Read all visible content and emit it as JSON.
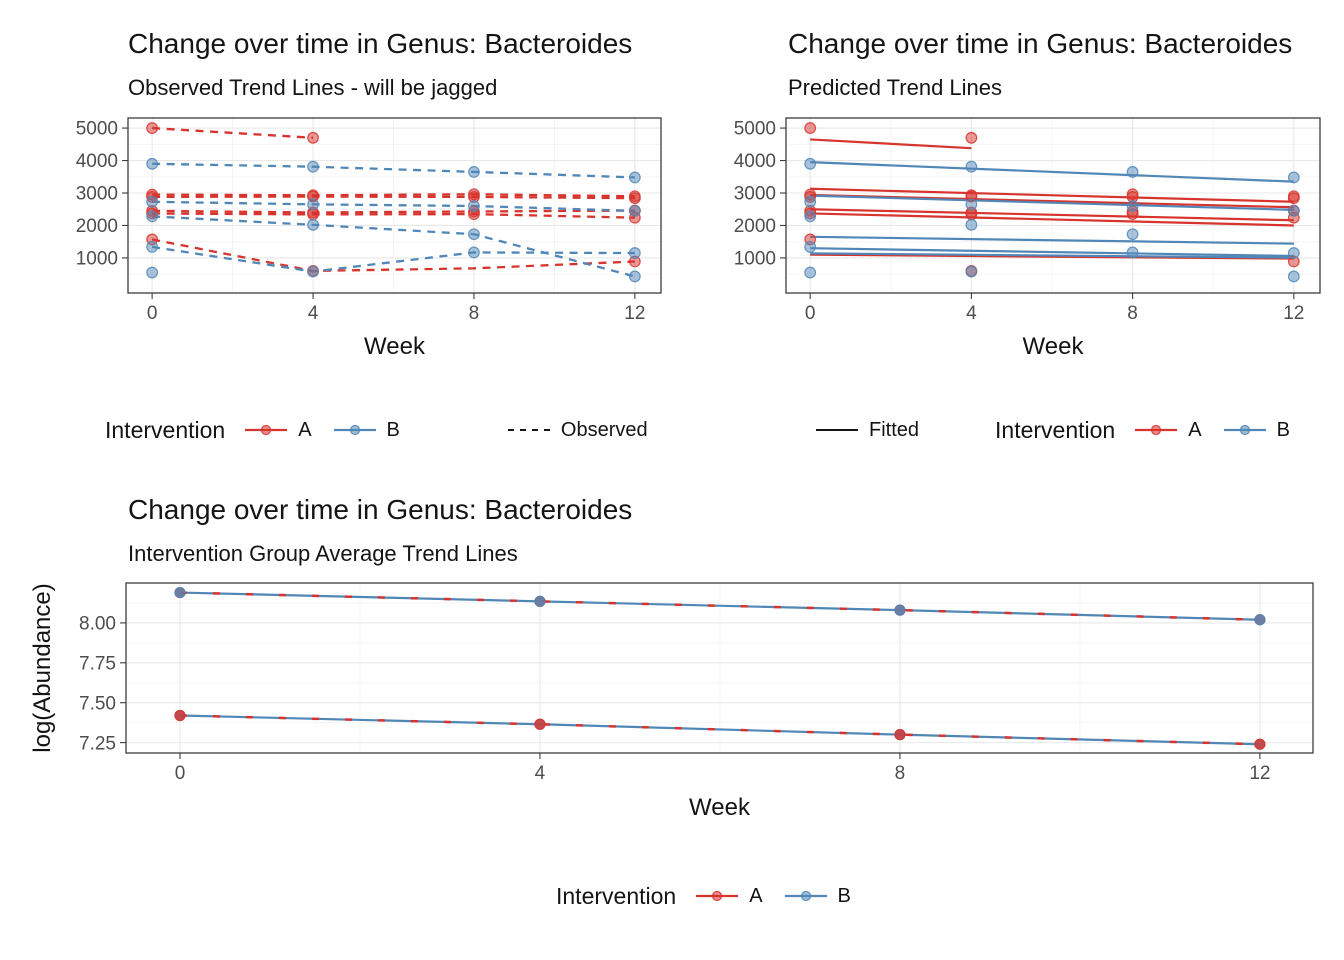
{
  "figure": {
    "background": "#FFFFFF"
  },
  "colors": {
    "red": "#D8342E",
    "blue": "#5187B7",
    "axis_text": "#4D4D4D",
    "title_text": "#141414",
    "grid_major": "#E8E8E8",
    "grid_minor": "#F3F3F3",
    "panel_border": "#3C3C3C",
    "legend_line": "#141414"
  },
  "chart_data": [
    {
      "id": "observed",
      "type": "line",
      "title": "Change over time in Genus: Bacteroides",
      "subtitle": "Observed Trend Lines - will be jagged",
      "xlabel": "Week",
      "ylabel": "",
      "x_ticks": [
        0,
        4,
        8,
        12
      ],
      "x_tick_labels": [
        "0",
        "4",
        "8",
        "12"
      ],
      "x_minor": [
        2,
        6,
        10
      ],
      "y_ticks": [
        1000,
        2000,
        3000,
        4000,
        5000
      ],
      "y_tick_labels": [
        "1000",
        "2000",
        "3000",
        "4000",
        "5000"
      ],
      "y_minor": [
        500,
        1500,
        2500,
        3500,
        4500
      ],
      "xlim": [
        -0.6,
        12.65
      ],
      "ylim": [
        -80,
        5310
      ],
      "legend": {
        "title": "Intervention",
        "entries": [
          {
            "label": "A",
            "color": "red"
          },
          {
            "label": "B",
            "color": "blue"
          }
        ],
        "extra": {
          "label": "Observed",
          "style": "dashed"
        }
      },
      "series": [
        {
          "name": "A-1",
          "group": "A",
          "color": "red",
          "line": "dashed",
          "x": [
            0,
            4
          ],
          "y": [
            5000,
            4700
          ],
          "markers": true
        },
        {
          "name": "A-2",
          "group": "A",
          "color": "red",
          "line": "dashed",
          "x": [
            0,
            4,
            8,
            12
          ],
          "y": [
            2950,
            2930,
            2960,
            2900
          ],
          "markers": true
        },
        {
          "name": "A-3",
          "group": "A",
          "color": "red",
          "line": "dashed",
          "x": [
            0,
            4,
            8,
            12
          ],
          "y": [
            2880,
            2890,
            2880,
            2840
          ],
          "markers": true
        },
        {
          "name": "A-4",
          "group": "A",
          "color": "red",
          "line": "dashed",
          "x": [
            0,
            4,
            8,
            12
          ],
          "y": [
            2450,
            2400,
            2430,
            2460
          ],
          "markers": true
        },
        {
          "name": "A-5",
          "group": "A",
          "color": "red",
          "line": "dashed",
          "x": [
            0,
            4,
            8,
            12
          ],
          "y": [
            2370,
            2340,
            2350,
            2240
          ],
          "markers": true
        },
        {
          "name": "A-6",
          "group": "A",
          "color": "red",
          "line": "dashed",
          "x": [
            0,
            4,
            8,
            12
          ],
          "y": [
            1570,
            600,
            680,
            890
          ],
          "markers": [
            0,
            4,
            12
          ]
        },
        {
          "name": "B-1",
          "group": "B",
          "color": "blue",
          "line": "dashed",
          "x": [
            0,
            4,
            8,
            12
          ],
          "y": [
            3900,
            3810,
            3650,
            3480
          ],
          "markers": true
        },
        {
          "name": "B-2",
          "group": "B",
          "color": "blue",
          "line": "dashed",
          "x": [
            0,
            4,
            8,
            12
          ],
          "y": [
            2730,
            2650,
            2600,
            2450
          ],
          "markers": true
        },
        {
          "name": "B-3",
          "group": "B",
          "color": "blue",
          "line": "dashed",
          "x": [
            0,
            4,
            8,
            12
          ],
          "y": [
            2280,
            2020,
            1730,
            430
          ],
          "markers": true
        },
        {
          "name": "B-4",
          "group": "B",
          "color": "blue",
          "line": "dashed",
          "x": [
            0,
            4,
            8,
            12
          ],
          "y": [
            1340,
            580,
            1170,
            1150
          ],
          "markers": true
        },
        {
          "name": "B-5",
          "group": "B",
          "color": "blue",
          "line": "none",
          "x": [
            0
          ],
          "y": [
            550
          ],
          "markers": true
        }
      ]
    },
    {
      "id": "fitted",
      "type": "line",
      "title": "Change over time in Genus: Bacteroides",
      "subtitle": "Predicted Trend Lines",
      "xlabel": "Week",
      "ylabel": "",
      "x_ticks": [
        0,
        4,
        8,
        12
      ],
      "x_tick_labels": [
        "0",
        "4",
        "8",
        "12"
      ],
      "x_minor": [
        2,
        6,
        10
      ],
      "y_ticks": [
        1000,
        2000,
        3000,
        4000,
        5000
      ],
      "y_tick_labels": [
        "1000",
        "2000",
        "3000",
        "4000",
        "5000"
      ],
      "y_minor": [
        500,
        1500,
        2500,
        3500,
        4500
      ],
      "xlim": [
        -0.6,
        12.65
      ],
      "ylim": [
        -80,
        5310
      ],
      "legend": {
        "title": "Intervention",
        "entries": [
          {
            "label": "A",
            "color": "red"
          },
          {
            "label": "B",
            "color": "blue"
          }
        ],
        "extra": {
          "label": "Fitted",
          "style": "solid"
        }
      },
      "series": [
        {
          "name": "fit-A-1",
          "group": "A",
          "color": "red",
          "line": "solid",
          "x": [
            0,
            4
          ],
          "y": [
            4650,
            4380
          ],
          "markers": false
        },
        {
          "name": "fit-A-2",
          "group": "A",
          "color": "red",
          "line": "solid",
          "x": [
            0,
            12
          ],
          "y": [
            3130,
            2730
          ],
          "markers": false
        },
        {
          "name": "fit-A-3",
          "group": "A",
          "color": "red",
          "line": "solid",
          "x": [
            0,
            12
          ],
          "y": [
            2940,
            2560
          ],
          "markers": false
        },
        {
          "name": "fit-A-4",
          "group": "A",
          "color": "red",
          "line": "solid",
          "x": [
            0,
            12
          ],
          "y": [
            2500,
            2160
          ],
          "markers": false
        },
        {
          "name": "fit-A-5",
          "group": "A",
          "color": "red",
          "line": "solid",
          "x": [
            0,
            12
          ],
          "y": [
            2370,
            2000
          ],
          "markers": false
        },
        {
          "name": "fit-A-6",
          "group": "A",
          "color": "red",
          "line": "solid",
          "x": [
            0,
            12
          ],
          "y": [
            1100,
            980
          ],
          "markers": false
        },
        {
          "name": "fit-B-1",
          "group": "B",
          "color": "blue",
          "line": "solid",
          "x": [
            0,
            12
          ],
          "y": [
            3950,
            3350
          ],
          "markers": false
        },
        {
          "name": "fit-B-2",
          "group": "B",
          "color": "blue",
          "line": "solid",
          "x": [
            0,
            12
          ],
          "y": [
            2920,
            2480
          ],
          "markers": false
        },
        {
          "name": "fit-B-3",
          "group": "B",
          "color": "blue",
          "line": "solid",
          "x": [
            0,
            12
          ],
          "y": [
            1650,
            1440
          ],
          "markers": false
        },
        {
          "name": "fit-B-4",
          "group": "B",
          "color": "blue",
          "line": "solid",
          "x": [
            0,
            12
          ],
          "y": [
            1300,
            1060
          ],
          "markers": false
        },
        {
          "name": "fit-B-5",
          "group": "B",
          "color": "blue",
          "line": "solid",
          "x": [
            0,
            12
          ],
          "y": [
            1140,
            1010
          ],
          "markers": false
        },
        {
          "name": "obs-A-1",
          "group": "A",
          "color": "red",
          "line": "none",
          "x": [
            0,
            4
          ],
          "y": [
            5000,
            4700
          ],
          "markers": true
        },
        {
          "name": "obs-A-2",
          "group": "A",
          "color": "red",
          "line": "none",
          "x": [
            0,
            4,
            8,
            12
          ],
          "y": [
            2950,
            2930,
            2960,
            2900
          ],
          "markers": true
        },
        {
          "name": "obs-A-3",
          "group": "A",
          "color": "red",
          "line": "none",
          "x": [
            0,
            4,
            8,
            12
          ],
          "y": [
            2880,
            2890,
            2880,
            2840
          ],
          "markers": true
        },
        {
          "name": "obs-A-4",
          "group": "A",
          "color": "red",
          "line": "none",
          "x": [
            0,
            4,
            8,
            12
          ],
          "y": [
            2450,
            2400,
            2430,
            2460
          ],
          "markers": true
        },
        {
          "name": "obs-A-5",
          "group": "A",
          "color": "red",
          "line": "none",
          "x": [
            0,
            4,
            8,
            12
          ],
          "y": [
            2370,
            2340,
            2350,
            2240
          ],
          "markers": true
        },
        {
          "name": "obs-A-6",
          "group": "A",
          "color": "red",
          "line": "none",
          "x": [
            0,
            4,
            8,
            12
          ],
          "y": [
            1570,
            600,
            680,
            890
          ],
          "markers": [
            0,
            4,
            12
          ]
        },
        {
          "name": "obs-B-1",
          "group": "B",
          "color": "blue",
          "line": "none",
          "x": [
            0,
            4,
            8,
            12
          ],
          "y": [
            3900,
            3810,
            3650,
            3480
          ],
          "markers": true
        },
        {
          "name": "obs-B-2",
          "group": "B",
          "color": "blue",
          "line": "none",
          "x": [
            0,
            4,
            8,
            12
          ],
          "y": [
            2730,
            2650,
            2600,
            2450
          ],
          "markers": true
        },
        {
          "name": "obs-B-3",
          "group": "B",
          "color": "blue",
          "line": "none",
          "x": [
            0,
            4,
            8,
            12
          ],
          "y": [
            2280,
            2020,
            1730,
            430
          ],
          "markers": true
        },
        {
          "name": "obs-B-4",
          "group": "B",
          "color": "blue",
          "line": "none",
          "x": [
            0,
            4,
            8,
            12
          ],
          "y": [
            1340,
            580,
            1170,
            1150
          ],
          "markers": true
        },
        {
          "name": "obs-B-5",
          "group": "B",
          "color": "blue",
          "line": "none",
          "x": [
            0
          ],
          "y": [
            550
          ],
          "markers": true
        }
      ]
    },
    {
      "id": "average",
      "type": "line",
      "title": "Change over time in Genus: Bacteroides",
      "subtitle": "Intervention Group Average Trend Lines",
      "xlabel": "Week",
      "ylabel": "log(Abundance)",
      "x_ticks": [
        0,
        4,
        8,
        12
      ],
      "x_tick_labels": [
        "0",
        "4",
        "8",
        "12"
      ],
      "x_minor": [
        2,
        6,
        10
      ],
      "y_ticks": [
        7.25,
        7.5,
        7.75,
        8.0
      ],
      "y_tick_labels": [
        "7.25",
        "7.50",
        "7.75",
        "8.00"
      ],
      "y_minor": [
        7.375,
        7.625,
        7.875,
        8.125
      ],
      "xlim": [
        -0.6,
        12.59
      ],
      "ylim": [
        7.185,
        8.25
      ],
      "legend": {
        "title": "Intervention",
        "entries": [
          {
            "label": "A",
            "color": "red"
          },
          {
            "label": "B",
            "color": "blue"
          }
        ]
      },
      "series": [
        {
          "name": "avg-upper-B-line",
          "group": "B",
          "color": "blue",
          "line": "solid",
          "x": [
            0,
            4,
            8,
            12
          ],
          "y": [
            8.19,
            8.135,
            8.08,
            8.02
          ],
          "markers": false
        },
        {
          "name": "avg-upper-A-line",
          "group": "A",
          "color": "red",
          "line": "sparse-dash",
          "x": [
            0,
            4,
            8,
            12
          ],
          "y": [
            8.19,
            8.135,
            8.08,
            8.02
          ],
          "markers": false
        },
        {
          "name": "avg-lower-B-line",
          "group": "B",
          "color": "blue",
          "line": "solid",
          "x": [
            0,
            4,
            8,
            12
          ],
          "y": [
            7.42,
            7.365,
            7.3,
            7.24
          ],
          "markers": false
        },
        {
          "name": "avg-lower-A-line",
          "group": "A",
          "color": "red",
          "line": "sparse-dash",
          "x": [
            0,
            4,
            8,
            12
          ],
          "y": [
            7.42,
            7.365,
            7.3,
            7.24
          ],
          "markers": false
        },
        {
          "name": "avg-upper-A-points",
          "group": "A",
          "color": "red",
          "line": "none",
          "x": [
            0,
            4,
            8,
            12
          ],
          "y": [
            8.19,
            8.135,
            8.08,
            8.02
          ],
          "markers": true
        },
        {
          "name": "avg-upper-B-points",
          "group": "B",
          "color": "blue",
          "line": "none",
          "x": [
            0,
            4,
            8,
            12
          ],
          "y": [
            8.19,
            8.135,
            8.08,
            8.02
          ],
          "markers": true
        },
        {
          "name": "avg-lower-B-points",
          "group": "B",
          "color": "blue",
          "line": "none",
          "x": [
            0,
            4,
            8,
            12
          ],
          "y": [
            7.42,
            7.365,
            7.3,
            7.24
          ],
          "markers": true
        },
        {
          "name": "avg-lower-A-points",
          "group": "A",
          "color": "red",
          "line": "none",
          "x": [
            0,
            4,
            8,
            12
          ],
          "y": [
            7.42,
            7.365,
            7.3,
            7.24
          ],
          "markers": true
        }
      ]
    }
  ]
}
